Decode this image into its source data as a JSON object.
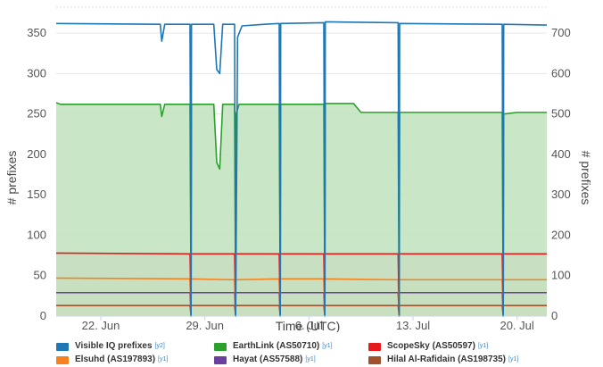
{
  "chart_data": {
    "type": "area",
    "xlabel": "Time (UTC)",
    "ylabel_left": "# prefixes",
    "ylabel_right": "# prefixes",
    "ylim_left": [
      0,
      380
    ],
    "ylim_right": [
      0,
      760
    ],
    "x_range": [
      "2024-06-19",
      "2024-07-22"
    ],
    "x_ticks": [
      {
        "date": "2024-06-22",
        "label": "22. Jun"
      },
      {
        "date": "2024-06-29",
        "label": "29. Jun"
      },
      {
        "date": "2024-07-06",
        "label": "6. Jul"
      },
      {
        "date": "2024-07-13",
        "label": "13. Jul"
      },
      {
        "date": "2024-07-20",
        "label": "20. Jul"
      }
    ],
    "y_ticks_left": [
      0,
      50,
      100,
      150,
      200,
      250,
      300,
      350
    ],
    "y_ticks_right": [
      0,
      100,
      200,
      300,
      400,
      500,
      600,
      700
    ],
    "grid": true,
    "outages": [
      "2024-06-28",
      "2024-07-01",
      "2024-07-04",
      "2024-07-07",
      "2024-07-12",
      "2024-07-19"
    ],
    "series": [
      {
        "name": "Hilal Al-Rafidain (AS198735)",
        "axis": "[y1]",
        "color": "#a0522d",
        "fill": "#dcc4bb",
        "points": [
          [
            "2024-06-19",
            13
          ],
          [
            "2024-06-28",
            13
          ],
          [
            "2024-06-28",
            0
          ],
          [
            "2024-06-28",
            13
          ],
          [
            "2024-07-01",
            13
          ],
          [
            "2024-07-01",
            0
          ],
          [
            "2024-07-01",
            13
          ],
          [
            "2024-07-04",
            13
          ],
          [
            "2024-07-04",
            0
          ],
          [
            "2024-07-04",
            13
          ],
          [
            "2024-07-07",
            13
          ],
          [
            "2024-07-07",
            0
          ],
          [
            "2024-07-07",
            13
          ],
          [
            "2024-07-12",
            13
          ],
          [
            "2024-07-12",
            0
          ],
          [
            "2024-07-12",
            13
          ],
          [
            "2024-07-19",
            13
          ],
          [
            "2024-07-19",
            0
          ],
          [
            "2024-07-19",
            13
          ],
          [
            "2024-07-22",
            13
          ]
        ]
      },
      {
        "name": "Hayat (AS57588)",
        "axis": "[y1]",
        "color": "#6b3fa0",
        "fill": "#d3cae3",
        "points": [
          [
            "2024-06-19",
            29
          ],
          [
            "2024-06-28",
            29
          ],
          [
            "2024-06-28",
            0
          ],
          [
            "2024-06-28",
            29
          ],
          [
            "2024-07-01",
            29
          ],
          [
            "2024-07-01",
            0
          ],
          [
            "2024-07-01",
            29
          ],
          [
            "2024-07-04",
            29
          ],
          [
            "2024-07-04",
            0
          ],
          [
            "2024-07-04",
            29
          ],
          [
            "2024-07-07",
            29
          ],
          [
            "2024-07-07",
            0
          ],
          [
            "2024-07-07",
            29
          ],
          [
            "2024-07-12",
            29
          ],
          [
            "2024-07-12",
            0
          ],
          [
            "2024-07-12",
            29
          ],
          [
            "2024-07-19",
            29
          ],
          [
            "2024-07-19",
            0
          ],
          [
            "2024-07-19",
            29
          ],
          [
            "2024-07-22",
            29
          ]
        ]
      },
      {
        "name": "Elsuhd (AS197893)",
        "axis": "[y1]",
        "color": "#f5821f",
        "fill": "#fcdcb9",
        "points": [
          [
            "2024-06-19",
            47
          ],
          [
            "2024-06-28",
            46
          ],
          [
            "2024-06-28",
            0
          ],
          [
            "2024-06-28",
            46
          ],
          [
            "2024-07-01",
            45
          ],
          [
            "2024-07-01",
            0
          ],
          [
            "2024-07-01",
            45
          ],
          [
            "2024-07-04",
            46
          ],
          [
            "2024-07-04",
            0
          ],
          [
            "2024-07-04",
            46
          ],
          [
            "2024-07-07",
            46
          ],
          [
            "2024-07-07",
            0
          ],
          [
            "2024-07-07",
            46
          ],
          [
            "2024-07-12",
            45
          ],
          [
            "2024-07-12",
            0
          ],
          [
            "2024-07-12",
            45
          ],
          [
            "2024-07-19",
            45
          ],
          [
            "2024-07-19",
            0
          ],
          [
            "2024-07-19",
            45
          ],
          [
            "2024-07-22",
            45
          ]
        ]
      },
      {
        "name": "ScopeSky (AS50597)",
        "axis": "[y1]",
        "color": "#e41a1c",
        "fill": "#f5b9b9",
        "points": [
          [
            "2024-06-19",
            78
          ],
          [
            "2024-06-28",
            77
          ],
          [
            "2024-06-28",
            0
          ],
          [
            "2024-06-28",
            77
          ],
          [
            "2024-07-01",
            77
          ],
          [
            "2024-07-01",
            0
          ],
          [
            "2024-07-01",
            77
          ],
          [
            "2024-07-04",
            77
          ],
          [
            "2024-07-04",
            0
          ],
          [
            "2024-07-04",
            77
          ],
          [
            "2024-07-07",
            77
          ],
          [
            "2024-07-07",
            0
          ],
          [
            "2024-07-07",
            77
          ],
          [
            "2024-07-12",
            77
          ],
          [
            "2024-07-12",
            0
          ],
          [
            "2024-07-12",
            77
          ],
          [
            "2024-07-19",
            77
          ],
          [
            "2024-07-19",
            0
          ],
          [
            "2024-07-19",
            77
          ],
          [
            "2024-07-22",
            77
          ]
        ]
      },
      {
        "name": "EarthLink (AS50710)",
        "axis": "[y1]",
        "color": "#2ca02c",
        "fill": "#c3e3c1",
        "points": [
          [
            "2024-06-19",
            264
          ],
          [
            "2024-06-19.3",
            262
          ],
          [
            "2024-06-26",
            262
          ],
          [
            "2024-06-26.1",
            247
          ],
          [
            "2024-06-26.3",
            262
          ],
          [
            "2024-06-28",
            262
          ],
          [
            "2024-06-28",
            0
          ],
          [
            "2024-06-28.1",
            262
          ],
          [
            "2024-06-29.6",
            262
          ],
          [
            "2024-06-29.8",
            190
          ],
          [
            "2024-06-30",
            182
          ],
          [
            "2024-06-30.2",
            262
          ],
          [
            "2024-07-01",
            262
          ],
          [
            "2024-07-01",
            0
          ],
          [
            "2024-07-01.1",
            250
          ],
          [
            "2024-07-01.3",
            262
          ],
          [
            "2024-07-04",
            262
          ],
          [
            "2024-07-04",
            0
          ],
          [
            "2024-07-04.1",
            262
          ],
          [
            "2024-07-07",
            262
          ],
          [
            "2024-07-07",
            0
          ],
          [
            "2024-07-07.1",
            263
          ],
          [
            "2024-07-09",
            263
          ],
          [
            "2024-07-09.5",
            252
          ],
          [
            "2024-07-12",
            252
          ],
          [
            "2024-07-12",
            0
          ],
          [
            "2024-07-12.1",
            252
          ],
          [
            "2024-07-19",
            252
          ],
          [
            "2024-07-19",
            0
          ],
          [
            "2024-07-19.1",
            250
          ],
          [
            "2024-07-20",
            252
          ],
          [
            "2024-07-22",
            252
          ]
        ]
      },
      {
        "name": "Visible IQ prefixes",
        "axis": "[y2]",
        "color": "#1f77b4",
        "fill": null,
        "points": [
          [
            "2024-06-19",
            724
          ],
          [
            "2024-06-26",
            722
          ],
          [
            "2024-06-26.1",
            680
          ],
          [
            "2024-06-26.3",
            722
          ],
          [
            "2024-06-28",
            722
          ],
          [
            "2024-06-28",
            0
          ],
          [
            "2024-06-28.1",
            722
          ],
          [
            "2024-06-29.6",
            722
          ],
          [
            "2024-06-29.8",
            610
          ],
          [
            "2024-06-30",
            600
          ],
          [
            "2024-06-30.2",
            722
          ],
          [
            "2024-07-01",
            722
          ],
          [
            "2024-07-01",
            0
          ],
          [
            "2024-07-01.2",
            690
          ],
          [
            "2024-07-01.5",
            718
          ],
          [
            "2024-07-03",
            722
          ],
          [
            "2024-07-04",
            724
          ],
          [
            "2024-07-04",
            0
          ],
          [
            "2024-07-04.1",
            724
          ],
          [
            "2024-07-07",
            726
          ],
          [
            "2024-07-07",
            0
          ],
          [
            "2024-07-07.1",
            728
          ],
          [
            "2024-07-12",
            726
          ],
          [
            "2024-07-12",
            0
          ],
          [
            "2024-07-12.1",
            724
          ],
          [
            "2024-07-19",
            722
          ],
          [
            "2024-07-19",
            0
          ],
          [
            "2024-07-19.1",
            722
          ],
          [
            "2024-07-22",
            720
          ]
        ]
      }
    ]
  },
  "legend": [
    {
      "label": "Visible IQ prefixes",
      "axis": "[y2]",
      "color": "#1f77b4"
    },
    {
      "label": "EarthLink (AS50710)",
      "axis": "[y1]",
      "color": "#2ca02c"
    },
    {
      "label": "ScopeSky (AS50597)",
      "axis": "[y1]",
      "color": "#e41a1c"
    },
    {
      "label": "Elsuhd (AS197893)",
      "axis": "[y1]",
      "color": "#f5821f"
    },
    {
      "label": "Hayat (AS57588)",
      "axis": "[y1]",
      "color": "#6b3fa0"
    },
    {
      "label": "Hilal Al-Rafidain (AS198735)",
      "axis": "[y1]",
      "color": "#a0522d"
    }
  ]
}
